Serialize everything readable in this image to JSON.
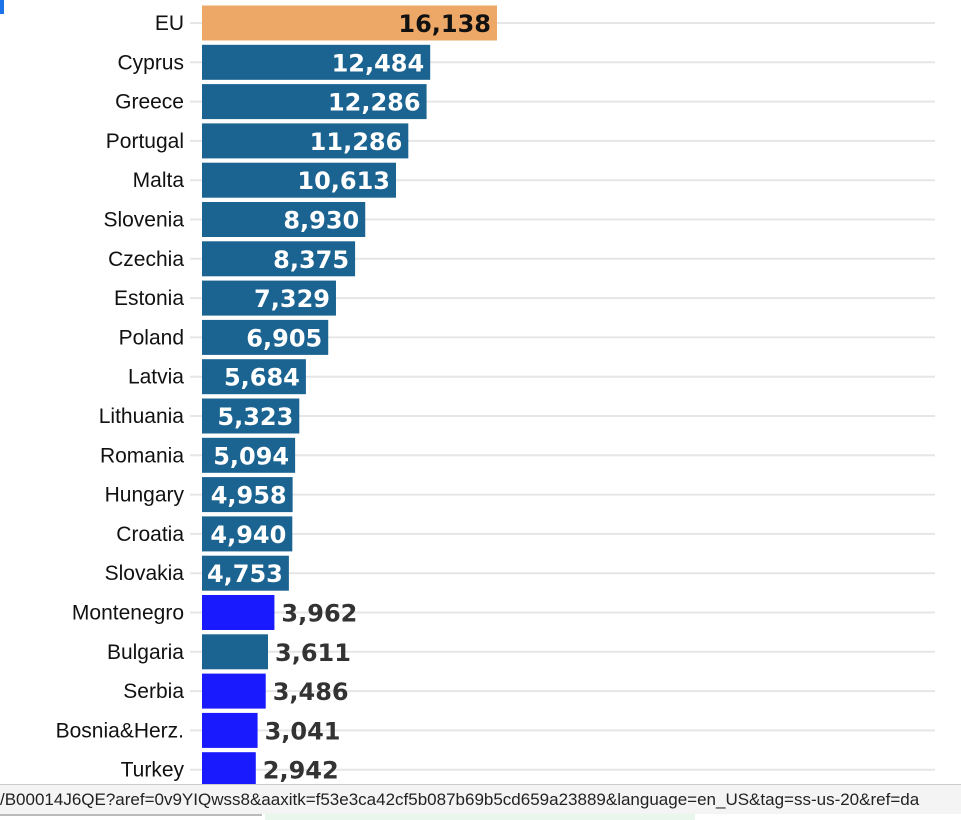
{
  "chart_data": {
    "type": "bar",
    "orientation": "horizontal",
    "categories": [
      "EU",
      "Cyprus",
      "Greece",
      "Portugal",
      "Malta",
      "Slovenia",
      "Czechia",
      "Estonia",
      "Poland",
      "Latvia",
      "Lithuania",
      "Romania",
      "Hungary",
      "Croatia",
      "Slovakia",
      "Montenegro",
      "Bulgaria",
      "Serbia",
      "Bosnia&Herz.",
      "Turkey"
    ],
    "values": [
      16138,
      12484,
      12286,
      11286,
      10613,
      8930,
      8375,
      7329,
      6905,
      5684,
      5323,
      5094,
      4958,
      4940,
      4753,
      3962,
      3611,
      3486,
      3041,
      2942
    ],
    "labels": [
      "16,138",
      "12,484",
      "12,286",
      "11,286",
      "10,613",
      "8,930",
      "8,375",
      "7,329",
      "6,905",
      "5,684",
      "5,323",
      "5,094",
      "4,958",
      "4,940",
      "4,753",
      "3,962",
      "3,611",
      "3,486",
      "3,041",
      "2,942"
    ],
    "groups": [
      "eu",
      "member",
      "member",
      "member",
      "member",
      "member",
      "member",
      "member",
      "member",
      "member",
      "member",
      "member",
      "member",
      "member",
      "member",
      "nonmember",
      "member",
      "nonmember",
      "nonmember",
      "nonmember"
    ],
    "colors": {
      "eu": "#eda868",
      "member": "#1b6491",
      "nonmember": "#1a1aff"
    },
    "xlim": [
      0,
      16138
    ],
    "grid": true
  },
  "status_bar": {
    "url": "/B00014J6QE?aref=0v9YIQwss8&aaxitk=f53e3ca42cf5b087b69b5cd659a23889&language=en_US&tag=ss-us-20&ref=da"
  }
}
